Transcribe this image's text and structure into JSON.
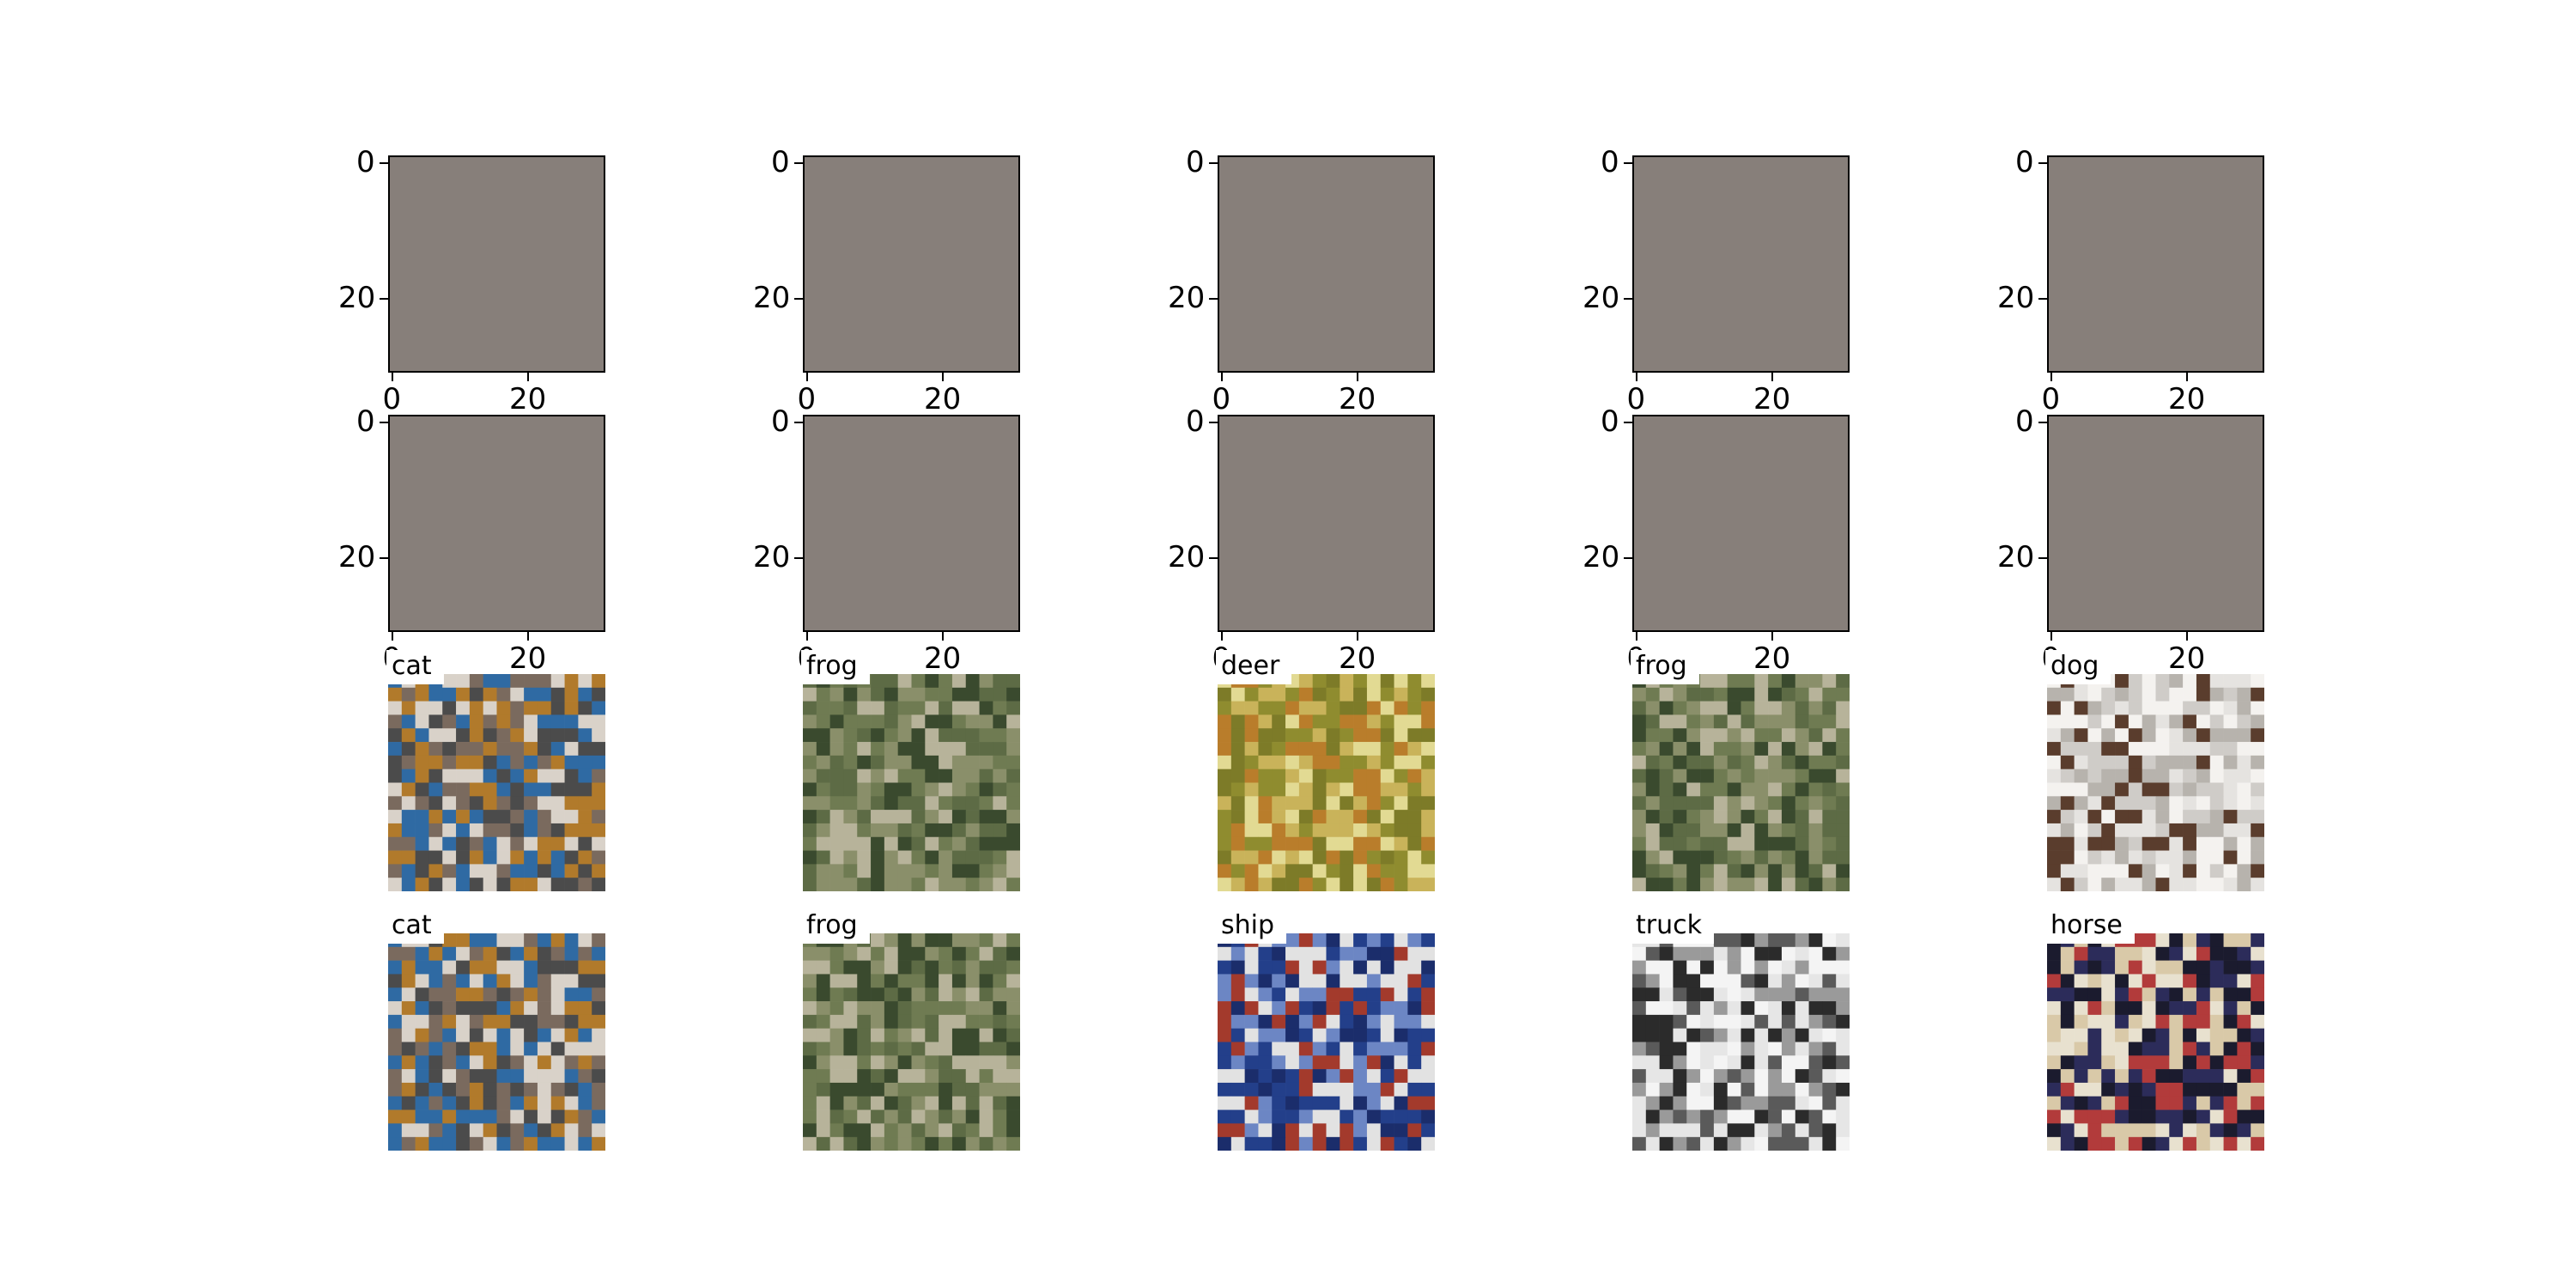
{
  "chart_data": {
    "type": "image-grid",
    "rows": 4,
    "cols": 5,
    "axis_ticks": {
      "x": [
        "0",
        "20"
      ],
      "y": [
        "0",
        "20"
      ]
    },
    "blank_fill": "#877f7a",
    "blank_rows": [
      0,
      1
    ],
    "labeled_images": [
      {
        "row": 2,
        "col": 0,
        "label": "cat"
      },
      {
        "row": 2,
        "col": 1,
        "label": "frog"
      },
      {
        "row": 2,
        "col": 2,
        "label": "deer"
      },
      {
        "row": 2,
        "col": 3,
        "label": "frog"
      },
      {
        "row": 2,
        "col": 4,
        "label": "dog"
      },
      {
        "row": 3,
        "col": 0,
        "label": "cat"
      },
      {
        "row": 3,
        "col": 1,
        "label": "frog"
      },
      {
        "row": 3,
        "col": 2,
        "label": "ship"
      },
      {
        "row": 3,
        "col": 3,
        "label": "truck"
      },
      {
        "row": 3,
        "col": 4,
        "label": "horse"
      }
    ]
  }
}
